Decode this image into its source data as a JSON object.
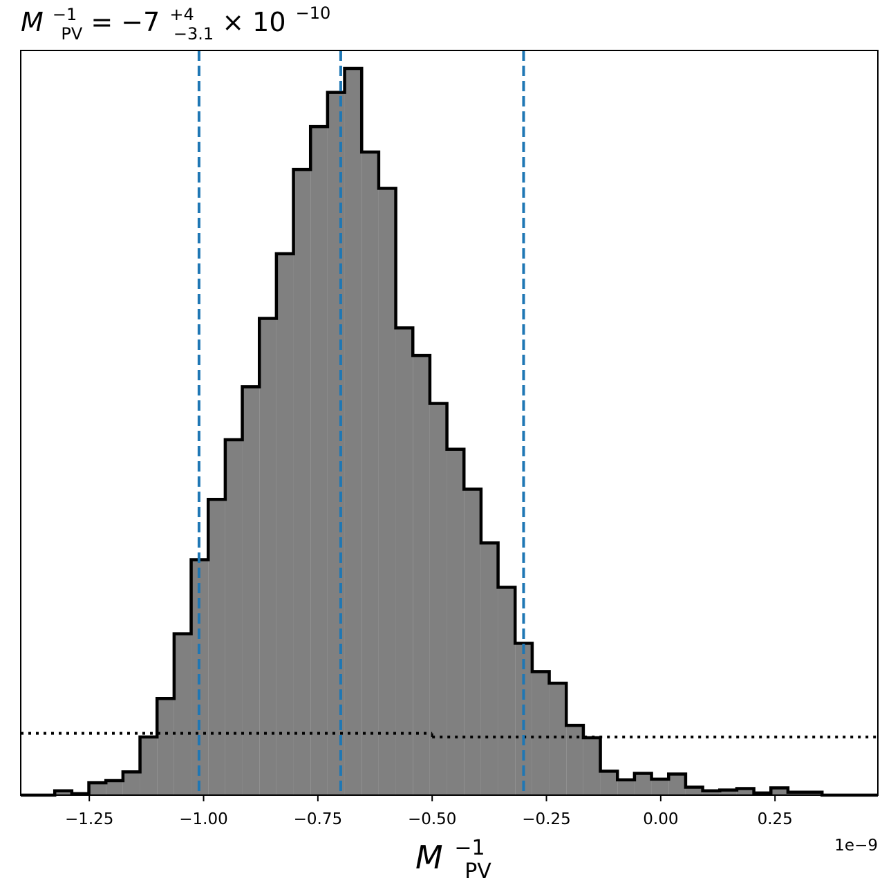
{
  "chart_data": {
    "type": "histogram",
    "title": {
      "base": "M",
      "base_sub": "PV",
      "base_sup": "−1",
      "equals": " = −7",
      "err_plus": "+4",
      "err_minus": "−3.1",
      "times": " × 10",
      "exponent": "−10"
    },
    "xlabel": {
      "base": "M",
      "sub": "PV",
      "sup": "−1"
    },
    "offset_label": "1e−9",
    "xlim": [
      -1.4,
      0.475
    ],
    "ylim": [
      0,
      1.0
    ],
    "x_ticks": [
      {
        "value": -1.25,
        "label": "−1.25"
      },
      {
        "value": -1.0,
        "label": "−1.00"
      },
      {
        "value": -0.75,
        "label": "−0.75"
      },
      {
        "value": -0.5,
        "label": "−0.50"
      },
      {
        "value": -0.25,
        "label": "−0.25"
      },
      {
        "value": 0.0,
        "label": "0.00"
      },
      {
        "value": 0.25,
        "label": "0.25"
      }
    ],
    "bin_edges": [
      -1.4,
      -1.3256,
      -1.2883,
      -1.251,
      -1.2137,
      -1.1764,
      -1.1391,
      -1.1018,
      -1.0645,
      -1.0272,
      -0.9899,
      -0.9526,
      -0.9153,
      -0.878,
      -0.8407,
      -0.8034,
      -0.7661,
      -0.7288,
      -0.6915,
      -0.6542,
      -0.6169,
      -0.5796,
      -0.5423,
      -0.505,
      -0.4677,
      -0.4304,
      -0.3931,
      -0.3558,
      -0.3185,
      -0.2812,
      -0.2439,
      -0.2066,
      -0.1693,
      -0.132,
      -0.0947,
      -0.0574,
      -0.0201,
      0.0172,
      0.0545,
      0.0918,
      0.1291,
      0.1664,
      0.2037,
      0.241,
      0.2783,
      0.3156,
      0.3529,
      0.3902,
      0.475
    ],
    "counts": [
      0.0,
      0.006,
      0.002,
      0.017,
      0.02,
      0.032,
      0.08,
      0.133,
      0.222,
      0.324,
      0.407,
      0.489,
      0.562,
      0.656,
      0.745,
      0.861,
      0.92,
      0.967,
      1.0,
      0.885,
      0.835,
      0.643,
      0.605,
      0.539,
      0.476,
      0.421,
      0.347,
      0.286,
      0.209,
      0.17,
      0.154,
      0.096,
      0.079,
      0.033,
      0.021,
      0.03,
      0.022,
      0.029,
      0.011,
      0.006,
      0.007,
      0.009,
      0.003,
      0.01,
      0.004,
      0.004,
      0.0,
      0.0
    ],
    "fill_color": "#808080",
    "edge_color": "#000000",
    "quantile_lines": {
      "color": "#1f77b4",
      "style": "dashed",
      "values": [
        -1.01,
        -0.7,
        -0.3
      ]
    },
    "prior_line": {
      "color": "#000000",
      "style": "dotted",
      "segments": [
        {
          "x": [
            -1.4,
            -0.5
          ],
          "y": 0.085
        },
        {
          "x": [
            -0.5,
            0.475
          ],
          "y": 0.08
        }
      ]
    },
    "grid": false,
    "y_ticks_visible": false
  }
}
